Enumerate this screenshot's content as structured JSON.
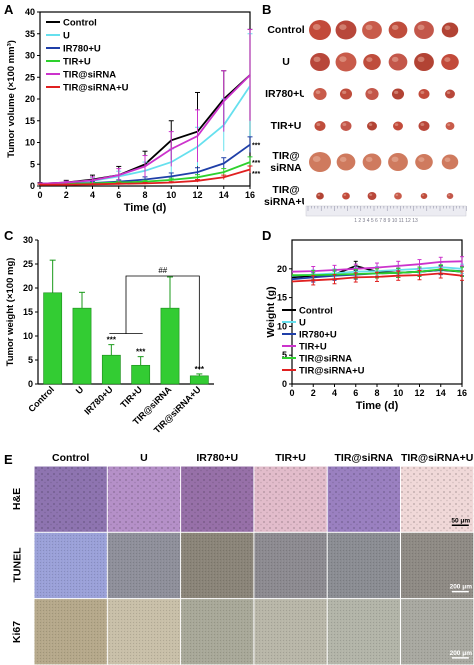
{
  "panel_letters": [
    "A",
    "B",
    "C",
    "D",
    "E"
  ],
  "chart_data": [
    {
      "panel": "A",
      "type": "line",
      "xlabel": "Time (d)",
      "ylabel": "Tumor volume (×100 mm³)",
      "xlim": [
        0,
        16
      ],
      "ylim": [
        0,
        40
      ],
      "xticks": [
        0,
        2,
        4,
        6,
        8,
        10,
        12,
        14,
        16
      ],
      "yticks": [
        0,
        5,
        10,
        15,
        20,
        25,
        30,
        35,
        40
      ],
      "legend_position": "top-left",
      "series": [
        {
          "name": "Control",
          "color": "#000000",
          "x": [
            0,
            2,
            4,
            6,
            8,
            10,
            12,
            14,
            16
          ],
          "y": [
            0.5,
            0.8,
            1.5,
            2.5,
            5,
            10.5,
            12.5,
            20,
            25.5
          ],
          "err": [
            0.3,
            0.5,
            1.0,
            2.0,
            3.0,
            4.5,
            9.0,
            6.5,
            10.5
          ]
        },
        {
          "name": "U",
          "color": "#66e0ee",
          "x": [
            0,
            2,
            4,
            6,
            8,
            10,
            12,
            14,
            16
          ],
          "y": [
            0.5,
            0.7,
            1.2,
            2.2,
            3.5,
            5.5,
            9,
            14,
            23
          ],
          "err": [
            0.2,
            0.3,
            0.8,
            1.2,
            2.0,
            3.0,
            4.5,
            6.0,
            12
          ]
        },
        {
          "name": "IR780+U",
          "color": "#1f3fa8",
          "x": [
            0,
            2,
            4,
            6,
            8,
            10,
            12,
            14,
            16
          ],
          "y": [
            0.4,
            0.5,
            0.7,
            1.0,
            1.5,
            2.2,
            3.2,
            5.2,
            9.5
          ],
          "err": [
            0.1,
            0.2,
            0.3,
            0.4,
            0.6,
            0.8,
            1.0,
            1.3,
            1.8
          ]
        },
        {
          "name": "TIR+U",
          "color": "#2dd12d",
          "x": [
            0,
            2,
            4,
            6,
            8,
            10,
            12,
            14,
            16
          ],
          "y": [
            0.4,
            0.5,
            0.6,
            0.8,
            1.0,
            1.4,
            2.0,
            3.2,
            5.5
          ],
          "err": [
            0.1,
            0.1,
            0.2,
            0.3,
            0.3,
            0.4,
            0.6,
            0.8,
            1.2
          ]
        },
        {
          "name": "TIR@siRNA",
          "color": "#cc33cc",
          "x": [
            0,
            2,
            4,
            6,
            8,
            10,
            12,
            14,
            16
          ],
          "y": [
            0.5,
            0.8,
            1.3,
            2.5,
            4.5,
            8.5,
            11.5,
            19.5,
            25.5
          ],
          "err": [
            0.2,
            0.3,
            0.8,
            1.5,
            2.5,
            4.0,
            6.0,
            7.0,
            10.5
          ]
        },
        {
          "name": "TIR@siRNA+U",
          "color": "#e02020",
          "x": [
            0,
            2,
            4,
            6,
            8,
            10,
            12,
            14,
            16
          ],
          "y": [
            0.3,
            0.3,
            0.4,
            0.5,
            0.6,
            0.8,
            1.2,
            2.0,
            3.8
          ],
          "err": [
            0.1,
            0.1,
            0.1,
            0.2,
            0.2,
            0.2,
            0.3,
            0.5,
            0.8
          ]
        }
      ],
      "annotations": [
        "***",
        "***",
        "***",
        "#"
      ]
    },
    {
      "panel": "C",
      "type": "bar",
      "ylabel": "Tumor weight (×100 mg)",
      "ylim": [
        0,
        30
      ],
      "yticks": [
        0,
        5,
        10,
        15,
        20,
        25,
        30
      ],
      "categories": [
        "Control",
        "U",
        "IR780+U",
        "TIR+U",
        "TIR@siRNA",
        "TIR@siRNA+U"
      ],
      "values": [
        19,
        15.8,
        6.0,
        3.9,
        15.8,
        1.7
      ],
      "errors": [
        6.8,
        3.3,
        2.2,
        1.8,
        6.5,
        0.4
      ],
      "bar_color": "#33cc33",
      "annotations": [
        "***",
        "***",
        "***",
        "##"
      ]
    },
    {
      "panel": "D",
      "type": "line",
      "xlabel": "Time (d)",
      "ylabel": "Weight (g)",
      "xlim": [
        0,
        16
      ],
      "ylim": [
        0,
        25
      ],
      "xticks": [
        0,
        2,
        4,
        6,
        8,
        10,
        12,
        14,
        16
      ],
      "yticks": [
        0,
        5,
        10,
        15,
        20
      ],
      "legend_position": "bottom-left",
      "series": [
        {
          "name": "Control",
          "color": "#000000",
          "x": [
            0,
            2,
            4,
            6,
            8,
            10,
            12,
            14,
            16
          ],
          "y": [
            18.5,
            18.8,
            19.0,
            20.5,
            19.5,
            19.3,
            19.5,
            19.8,
            19.5
          ]
        },
        {
          "name": "U",
          "color": "#66e0ee",
          "x": [
            0,
            2,
            4,
            6,
            8,
            10,
            12,
            14,
            16
          ],
          "y": [
            18.8,
            19.0,
            19.2,
            19.5,
            19.6,
            19.8,
            20.0,
            20.3,
            20.0
          ]
        },
        {
          "name": "IR780+U",
          "color": "#1f3fa8",
          "x": [
            0,
            2,
            4,
            6,
            8,
            10,
            12,
            14,
            16
          ],
          "y": [
            18.2,
            18.5,
            18.8,
            19.0,
            19.2,
            19.3,
            19.5,
            19.8,
            19.6
          ]
        },
        {
          "name": "TIR+U",
          "color": "#cc33cc",
          "x": [
            0,
            2,
            4,
            6,
            8,
            10,
            12,
            14,
            16
          ],
          "y": [
            19.5,
            19.6,
            19.8,
            20.0,
            20.2,
            20.5,
            20.8,
            21.2,
            21.3
          ]
        },
        {
          "name": "TIR@siRNA",
          "color": "#2dd12d",
          "x": [
            0,
            2,
            4,
            6,
            8,
            10,
            12,
            14,
            16
          ],
          "y": [
            18.9,
            18.9,
            19.0,
            19.1,
            19.2,
            19.3,
            19.5,
            19.9,
            19.5
          ]
        },
        {
          "name": "TIR@siRNA+U",
          "color": "#e02020",
          "x": [
            0,
            2,
            4,
            6,
            8,
            10,
            12,
            14,
            16
          ],
          "y": [
            17.8,
            18.0,
            18.2,
            18.5,
            18.6,
            18.8,
            18.9,
            19.2,
            18.8
          ]
        }
      ]
    }
  ],
  "tumor_photo": {
    "row_labels": [
      "Control",
      "U",
      "IR780+U",
      "TIR+U",
      "TIR@ siRNA",
      "TIR@ siRNA+U"
    ],
    "sizes": [
      [
        1.0,
        0.95,
        0.9,
        0.85,
        0.9,
        0.75
      ],
      [
        0.9,
        0.95,
        0.8,
        0.85,
        0.9,
        0.8
      ],
      [
        0.6,
        0.55,
        0.6,
        0.55,
        0.5,
        0.45
      ],
      [
        0.5,
        0.5,
        0.45,
        0.45,
        0.5,
        0.4
      ],
      [
        1.0,
        0.85,
        0.85,
        0.9,
        0.8,
        0.75
      ],
      [
        0.35,
        0.35,
        0.4,
        0.35,
        0.3,
        0.3
      ]
    ],
    "ruler_text": "1 2 3 4 5 6 7 8 9 10 11 12 13"
  },
  "histology": {
    "column_headers": [
      "Control",
      "U",
      "IR780+U",
      "TIR+U",
      "TIR@siRNA",
      "TIR@siRNA+U"
    ],
    "row_labels": [
      "H&E",
      "TUNEL",
      "Ki67"
    ],
    "scale_bars": [
      "50 μm",
      "200 μm",
      "200 μm"
    ],
    "colors": {
      "he": [
        "#8e74b0",
        "#b590c8",
        "#9770a8",
        "#e2bccb",
        "#9a80c0",
        "#f0d8d8"
      ],
      "tunel": [
        "#9aa0d8",
        "#8e8f9a",
        "#8a8478",
        "#8c8a90",
        "#8a8c92",
        "#8e8a84"
      ],
      "ki67": [
        "#b5a88a",
        "#c8bfa8",
        "#a8a898",
        "#b8b6a8",
        "#b2b4a8",
        "#a8a8a0"
      ]
    }
  }
}
